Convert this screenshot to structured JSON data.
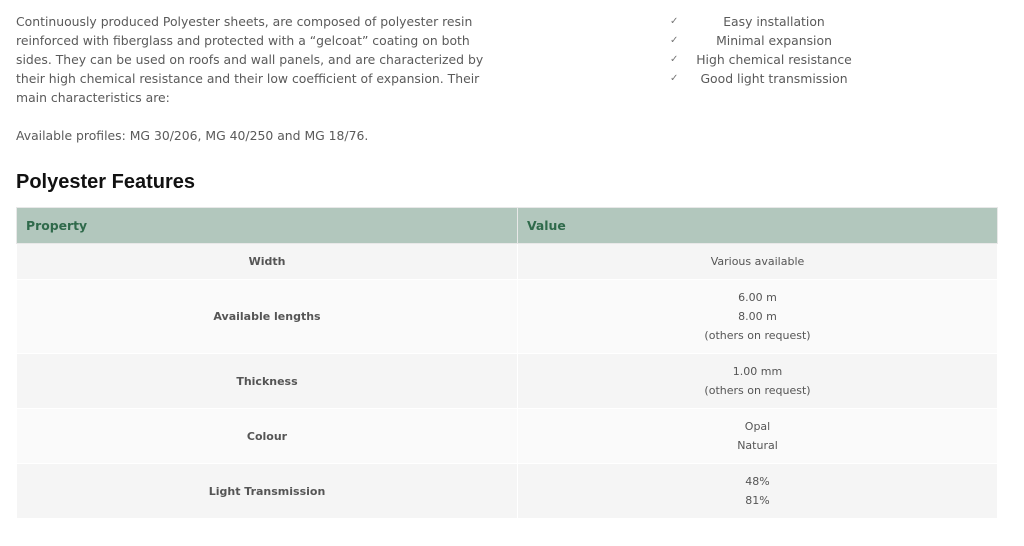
{
  "intro": {
    "text": "Continuously produced Polyester sheets, are composed of polyester resin reinforced with fiberglass and protected with a “gelcoat” coating on both sides. They can be used on roofs and wall panels, and are characterized by their high chemical resistance and their low coefficient of expansion. Their main characteristics are:",
    "profiles": "Available profiles: MG 30/206, MG 40/250 and MG 18/76."
  },
  "characteristics": [
    {
      "icon": "check-icon",
      "label": "Easy installation"
    },
    {
      "icon": "check-icon",
      "label": "Minimal expansion"
    },
    {
      "icon": "check-icon",
      "label": "High chemical resistance"
    },
    {
      "icon": "check-icon",
      "label": "Good light transmission"
    }
  ],
  "features": {
    "title": "Polyester Features",
    "headers": [
      "Property",
      "Value"
    ],
    "header_bg": "#b2c7bd",
    "header_color": "#2f6a4b",
    "rows": [
      {
        "property": "Width",
        "values": [
          "Various available"
        ]
      },
      {
        "property": "Available lengths",
        "values": [
          "6.00 m",
          "8.00 m",
          "(others on request)"
        ]
      },
      {
        "property": "Thickness",
        "values": [
          "1.00 mm",
          "(others on request)"
        ]
      },
      {
        "property": "Colour",
        "values": [
          "Opal",
          "Natural"
        ]
      },
      {
        "property": "Light Transmission",
        "values": [
          "48%",
          "81%"
        ]
      }
    ]
  }
}
